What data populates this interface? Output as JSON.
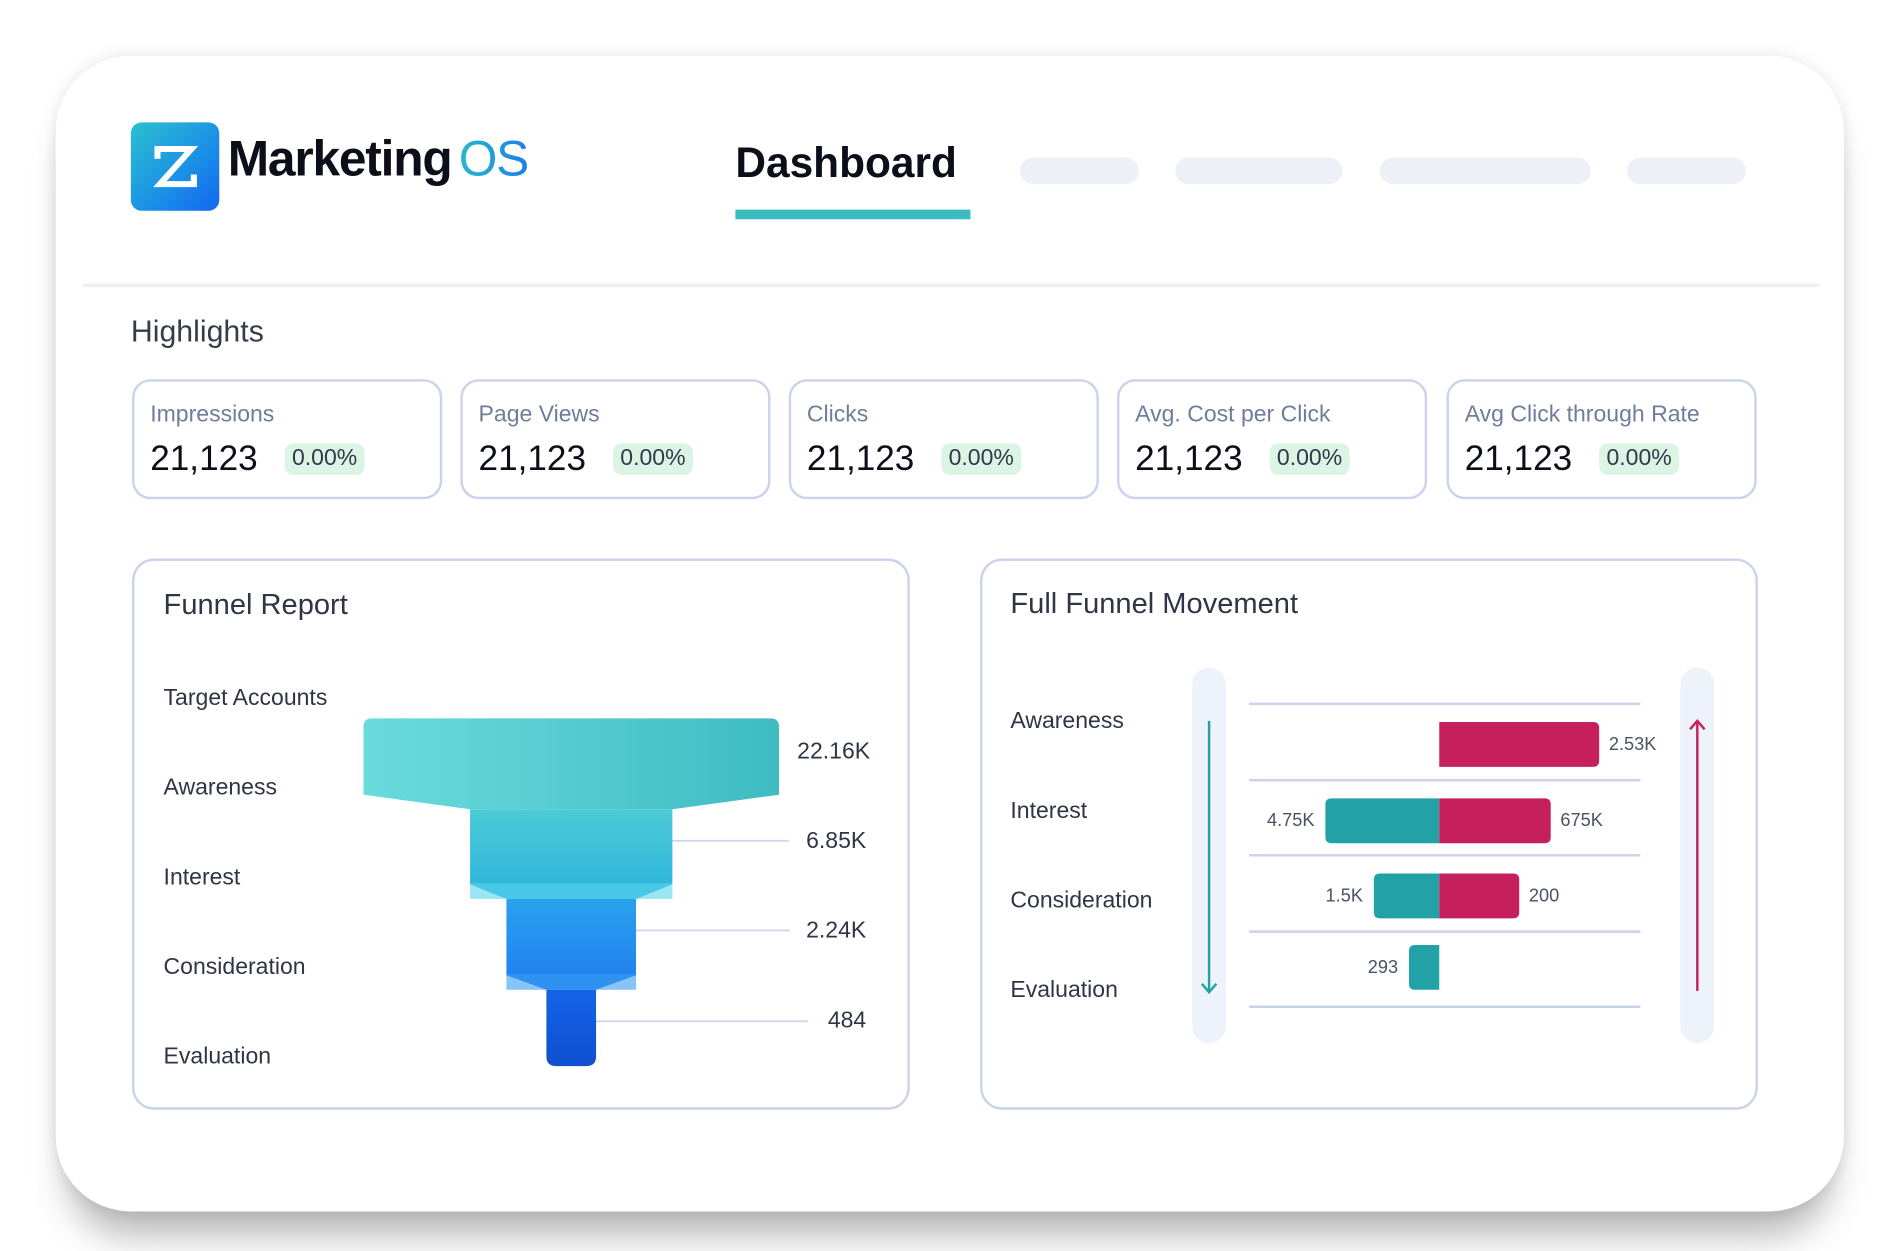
{
  "brand": {
    "name": "Marketing",
    "suffix": "OS",
    "logo_letter": "Z"
  },
  "nav": {
    "active_tab": "Dashboard",
    "placeholder_tabs": 4
  },
  "colors": {
    "accent": "#3dbcc0",
    "teal": "#22a2a6",
    "pink": "#c6205c",
    "badge_bg": "#dcf4e3"
  },
  "highlights": {
    "title": "Highlights",
    "cards": [
      {
        "label": "Impressions",
        "value": "21,123",
        "change": "0.00%"
      },
      {
        "label": "Page Views",
        "value": "21,123",
        "change": "0.00%"
      },
      {
        "label": "Clicks",
        "value": "21,123",
        "change": "0.00%"
      },
      {
        "label": "Avg. Cost per Click",
        "value": "21,123",
        "change": "0.00%"
      },
      {
        "label": "Avg Click through Rate",
        "value": "21,123",
        "change": "0.00%"
      }
    ]
  },
  "funnel_report": {
    "title": "Funnel Report",
    "stages": [
      "Target Accounts",
      "Awareness",
      "Interest",
      "Consideration",
      "Evaluation"
    ],
    "values": [
      "22.16K",
      "6.85K",
      "2.24K",
      "484"
    ]
  },
  "full_funnel": {
    "title": "Full Funnel Movement",
    "stages": [
      "Awareness",
      "Interest",
      "Consideration",
      "Evaluation"
    ],
    "down_values": [
      "",
      "4.75K",
      "1.5K",
      "293"
    ],
    "up_values": [
      "2.53K",
      "675K",
      "200",
      ""
    ],
    "down_arrow_icon": "arrow-down-icon",
    "up_arrow_icon": "arrow-up-icon"
  },
  "chart_data": [
    {
      "type": "bar",
      "title": "Funnel Report",
      "categories": [
        "Target Accounts",
        "Awareness",
        "Interest",
        "Consideration"
      ],
      "values": [
        22160,
        6850,
        2240,
        484
      ]
    },
    {
      "type": "bar",
      "title": "Full Funnel Movement",
      "categories": [
        "Awareness",
        "Interest",
        "Consideration",
        "Evaluation"
      ],
      "series": [
        {
          "values": [
            null,
            4750,
            1500,
            293
          ]
        },
        {
          "values": [
            2530,
            675000,
            200,
            null
          ]
        }
      ]
    }
  ]
}
